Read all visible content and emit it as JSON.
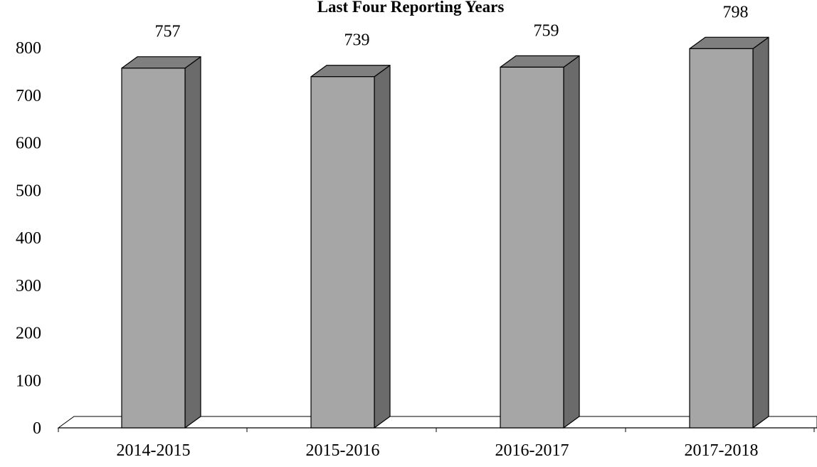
{
  "chart_data": {
    "type": "bar",
    "title": "Last Four Reporting Years",
    "categories": [
      "2014-2015",
      "2015-2016",
      "2016-2017",
      "2017-2018"
    ],
    "values": [
      757,
      739,
      759,
      798
    ],
    "data_labels": [
      "757",
      "739",
      "759",
      "798"
    ],
    "y_ticks": [
      "0",
      "100",
      "200",
      "300",
      "400",
      "500",
      "600",
      "700",
      "800"
    ],
    "ylim": [
      0,
      800
    ],
    "xlabel": "",
    "ylabel": "",
    "grid": false,
    "legend": "none",
    "style": "3d-column",
    "colors": {
      "bar_front": "#a6a6a6",
      "bar_side": "#6b6b6b",
      "bar_top": "#7f7f7f",
      "outline": "#000000"
    }
  }
}
